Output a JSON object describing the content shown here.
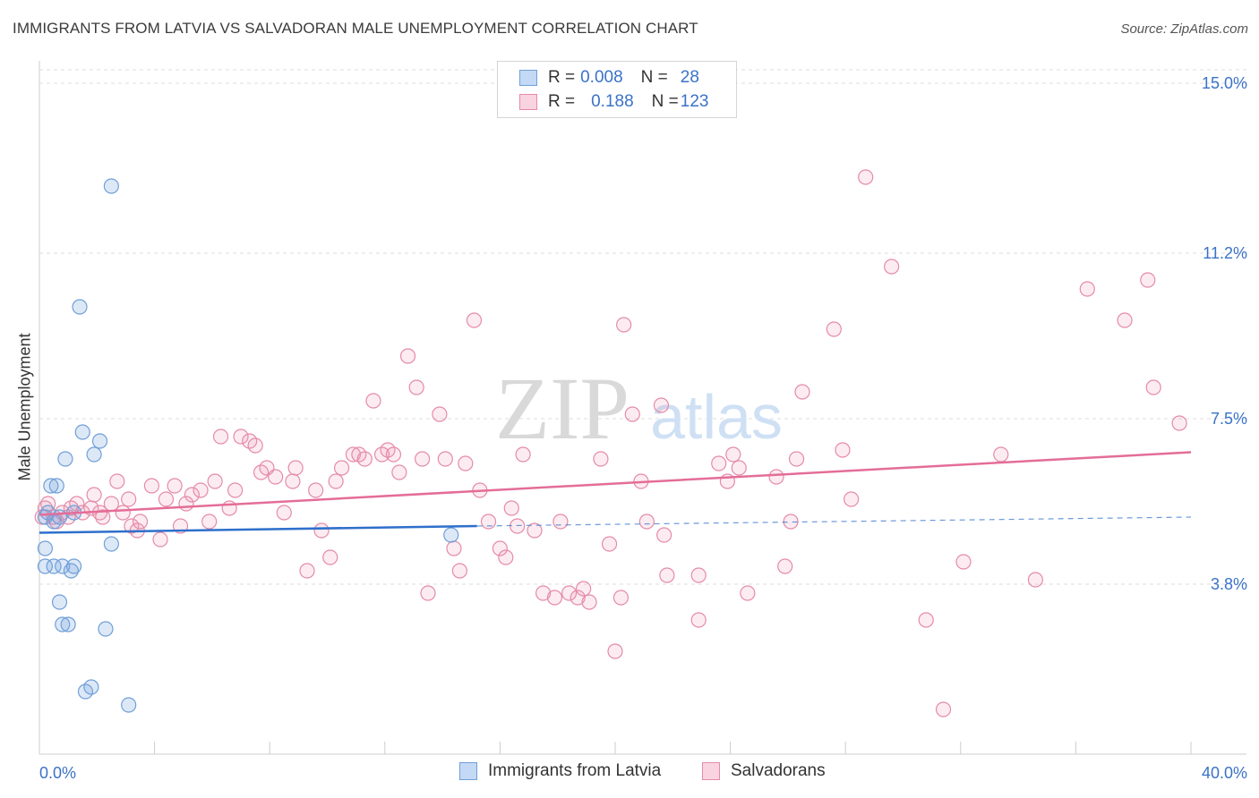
{
  "header": {
    "title": "IMMIGRANTS FROM LATVIA VS SALVADORAN MALE UNEMPLOYMENT CORRELATION CHART",
    "source": "Source: ZipAtlas.com"
  },
  "watermark": {
    "zip": "ZIP",
    "atlas": "atlas"
  },
  "legend": {
    "rows": [
      {
        "r_label": "R = ",
        "r_value": "0.008",
        "n_label": "N = ",
        "n_value": "28",
        "color": "#a9c8f0",
        "border": "#6f9fd8"
      },
      {
        "r_label": "R = ",
        "r_value": "0.188",
        "n_label": "N = ",
        "n_value": "123",
        "color": "#f6c3d4",
        "border": "#e58aa8"
      }
    ]
  },
  "colors": {
    "blue_fill": "rgba(120,165,225,0.25)",
    "blue_stroke": "#6f9fd8",
    "blue_line": "#2e6fcb",
    "pink_fill": "rgba(240,150,180,0.18)",
    "pink_stroke": "#e58aa8",
    "pink_line": "#e46d98",
    "tick_text": "#3a72c8",
    "grid": "#dcdcdc"
  },
  "chart_data": {
    "type": "scatter",
    "title": "IMMIGRANTS FROM LATVIA VS SALVADORAN MALE UNEMPLOYMENT CORRELATION CHART",
    "xlabel": "",
    "ylabel": "Male Unemployment",
    "xlim": [
      0,
      40
    ],
    "ylim": [
      0,
      15.5
    ],
    "x_tick_labels": {
      "left": "0.0%",
      "right": "40.0%"
    },
    "y_ticks": [
      {
        "value": 3.8,
        "label": "3.8%"
      },
      {
        "value": 7.5,
        "label": "7.5%"
      },
      {
        "value": 11.2,
        "label": "11.2%"
      },
      {
        "value": 15.0,
        "label": "15.0%"
      }
    ],
    "grid": true,
    "series": [
      {
        "name": "Immigrants from Latvia",
        "color": "#a9c8f0",
        "trend": {
          "x_start": 0,
          "y_start": 4.95,
          "x_solid_end": 15.2,
          "y_solid_end": 5.1,
          "x_end": 40,
          "y_end": 5.3
        },
        "points": [
          [
            0.2,
            5.3
          ],
          [
            0.3,
            5.4
          ],
          [
            0.5,
            5.2
          ],
          [
            0.7,
            5.3
          ],
          [
            0.2,
            4.6
          ],
          [
            0.4,
            6.0
          ],
          [
            0.6,
            6.0
          ],
          [
            0.9,
            6.6
          ],
          [
            1.2,
            5.4
          ],
          [
            1.5,
            7.2
          ],
          [
            1.9,
            6.7
          ],
          [
            2.1,
            7.0
          ],
          [
            2.5,
            12.7
          ],
          [
            1.4,
            10.0
          ],
          [
            0.2,
            4.2
          ],
          [
            0.5,
            4.2
          ],
          [
            0.8,
            4.2
          ],
          [
            1.1,
            4.1
          ],
          [
            1.2,
            4.2
          ],
          [
            0.7,
            3.4
          ],
          [
            0.8,
            2.9
          ],
          [
            1.0,
            2.9
          ],
          [
            2.3,
            2.8
          ],
          [
            2.5,
            4.7
          ],
          [
            1.6,
            1.4
          ],
          [
            1.8,
            1.5
          ],
          [
            3.1,
            1.1
          ],
          [
            14.3,
            4.9
          ]
        ]
      },
      {
        "name": "Salvadorans",
        "color": "#f6c3d4",
        "trend": {
          "x_start": 0,
          "y_start": 5.35,
          "x_end": 40,
          "y_end": 6.75
        },
        "points": [
          [
            0.1,
            5.3
          ],
          [
            0.2,
            5.5
          ],
          [
            0.3,
            5.6
          ],
          [
            0.5,
            5.3
          ],
          [
            0.6,
            5.2
          ],
          [
            0.8,
            5.4
          ],
          [
            1.0,
            5.3
          ],
          [
            1.1,
            5.5
          ],
          [
            1.3,
            5.6
          ],
          [
            1.5,
            5.4
          ],
          [
            1.8,
            5.5
          ],
          [
            1.9,
            5.8
          ],
          [
            2.1,
            5.4
          ],
          [
            2.2,
            5.3
          ],
          [
            2.5,
            5.6
          ],
          [
            2.7,
            6.1
          ],
          [
            2.9,
            5.4
          ],
          [
            3.1,
            5.7
          ],
          [
            3.2,
            5.1
          ],
          [
            3.4,
            5.0
          ],
          [
            3.5,
            5.2
          ],
          [
            3.9,
            6.0
          ],
          [
            4.2,
            4.8
          ],
          [
            4.4,
            5.7
          ],
          [
            4.7,
            6.0
          ],
          [
            4.9,
            5.1
          ],
          [
            5.1,
            5.6
          ],
          [
            5.3,
            5.8
          ],
          [
            5.6,
            5.9
          ],
          [
            5.9,
            5.2
          ],
          [
            6.1,
            6.1
          ],
          [
            6.3,
            7.1
          ],
          [
            6.6,
            5.5
          ],
          [
            6.8,
            5.9
          ],
          [
            7.0,
            7.1
          ],
          [
            7.3,
            7.0
          ],
          [
            7.5,
            6.9
          ],
          [
            7.7,
            6.3
          ],
          [
            7.9,
            6.4
          ],
          [
            8.2,
            6.2
          ],
          [
            8.5,
            5.4
          ],
          [
            8.8,
            6.1
          ],
          [
            8.9,
            6.4
          ],
          [
            9.3,
            4.1
          ],
          [
            9.6,
            5.9
          ],
          [
            9.8,
            5.0
          ],
          [
            10.1,
            4.4
          ],
          [
            10.3,
            6.1
          ],
          [
            10.5,
            6.4
          ],
          [
            10.9,
            6.7
          ],
          [
            11.1,
            6.7
          ],
          [
            11.3,
            6.6
          ],
          [
            11.6,
            7.9
          ],
          [
            11.9,
            6.7
          ],
          [
            12.1,
            6.8
          ],
          [
            12.3,
            6.7
          ],
          [
            12.5,
            6.3
          ],
          [
            12.8,
            8.9
          ],
          [
            13.1,
            8.2
          ],
          [
            13.3,
            6.6
          ],
          [
            13.5,
            3.6
          ],
          [
            13.9,
            7.6
          ],
          [
            14.1,
            6.6
          ],
          [
            14.4,
            4.6
          ],
          [
            14.6,
            4.1
          ],
          [
            14.8,
            6.5
          ],
          [
            15.1,
            9.7
          ],
          [
            15.3,
            5.9
          ],
          [
            15.6,
            5.2
          ],
          [
            16.0,
            4.6
          ],
          [
            16.2,
            4.4
          ],
          [
            16.4,
            5.5
          ],
          [
            16.6,
            5.1
          ],
          [
            16.8,
            6.7
          ],
          [
            17.2,
            5.0
          ],
          [
            17.5,
            3.6
          ],
          [
            17.9,
            3.5
          ],
          [
            18.1,
            5.2
          ],
          [
            18.4,
            3.6
          ],
          [
            18.7,
            3.5
          ],
          [
            18.9,
            3.7
          ],
          [
            19.1,
            3.4
          ],
          [
            19.5,
            6.6
          ],
          [
            19.8,
            4.7
          ],
          [
            20.0,
            2.3
          ],
          [
            20.2,
            3.5
          ],
          [
            20.3,
            9.6
          ],
          [
            20.6,
            7.6
          ],
          [
            20.9,
            6.1
          ],
          [
            21.1,
            5.2
          ],
          [
            21.6,
            7.8
          ],
          [
            21.7,
            4.9
          ],
          [
            21.8,
            4.0
          ],
          [
            22.9,
            4.0
          ],
          [
            22.9,
            3.0
          ],
          [
            23.6,
            6.5
          ],
          [
            23.9,
            6.1
          ],
          [
            24.1,
            6.7
          ],
          [
            24.3,
            6.4
          ],
          [
            24.6,
            3.6
          ],
          [
            25.6,
            6.2
          ],
          [
            25.9,
            4.2
          ],
          [
            26.1,
            5.2
          ],
          [
            26.3,
            6.6
          ],
          [
            26.5,
            8.1
          ],
          [
            27.6,
            9.5
          ],
          [
            27.9,
            6.8
          ],
          [
            28.2,
            5.7
          ],
          [
            28.7,
            12.9
          ],
          [
            29.6,
            10.9
          ],
          [
            30.8,
            3.0
          ],
          [
            31.4,
            1.0
          ],
          [
            32.1,
            4.3
          ],
          [
            33.4,
            6.7
          ],
          [
            34.6,
            3.9
          ],
          [
            36.4,
            10.4
          ],
          [
            37.7,
            9.7
          ],
          [
            38.5,
            10.6
          ],
          [
            38.7,
            8.2
          ],
          [
            39.6,
            7.4
          ]
        ]
      }
    ]
  },
  "bottom_legend": {
    "items": [
      {
        "label": "Immigrants from Latvia"
      },
      {
        "label": "Salvadorans"
      }
    ]
  }
}
